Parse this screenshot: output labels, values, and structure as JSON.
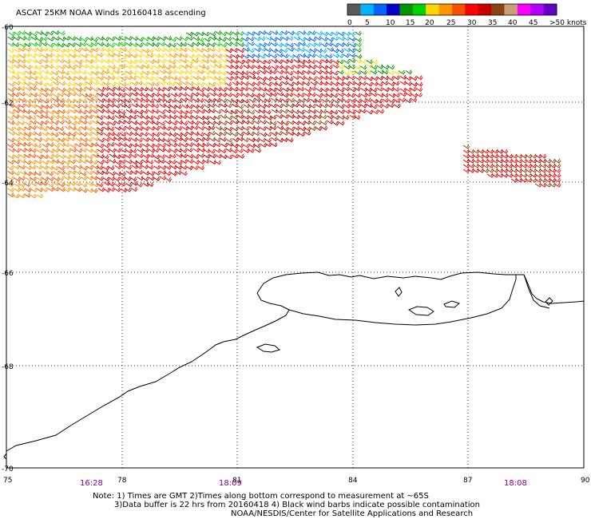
{
  "title": "ASCAT 25KM NOAA Winds 20160418 ascending",
  "colorbar": {
    "colors": [
      "#5a5a5a",
      "#00b4ff",
      "#0064ff",
      "#0000c8",
      "#009600",
      "#00d200",
      "#ffd700",
      "#ff9600",
      "#ff5000",
      "#ff0000",
      "#c80000",
      "#8b4513",
      "#c8a078",
      "#ff00ff",
      "#b400ff",
      "#6400c8"
    ],
    "labels": [
      "0",
      "5",
      "10",
      "15",
      "20",
      "25",
      "30",
      "35",
      "40",
      "45",
      ">50 knots"
    ]
  },
  "lat_labels": [
    "-60",
    "-62",
    "-64",
    "-66",
    "-68",
    "-70"
  ],
  "lon_labels": [
    "75",
    "78",
    "81",
    "84",
    "87",
    "90"
  ],
  "pass_times": [
    "16:28",
    "18:09",
    "18:08"
  ],
  "notes": [
    "Note: 1) Times are GMT 2)Times along bottom correspond to measurement at ~65S",
    "3)Data buffer is 22 hrs from 20160418 4) Black wind barbs indicate possible contamination",
    "NOAA/NESDIS/Center for Satellite Applications and Research"
  ],
  "map": {
    "land": "Antarctica coastline",
    "wind_swaths": [
      {
        "name": "main swath",
        "speed_kt_min": 15,
        "speed_kt_max": 40
      },
      {
        "name": "eastern patch",
        "speed_kt_min": 30,
        "speed_kt_max": 40
      }
    ]
  }
}
